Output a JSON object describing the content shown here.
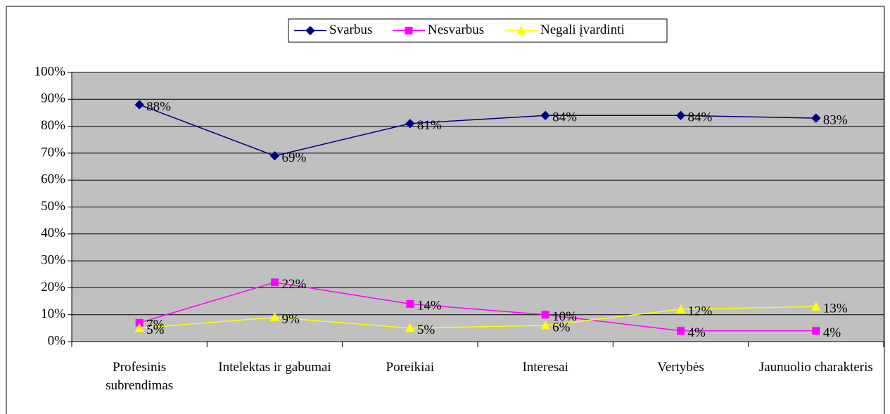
{
  "chart_data": {
    "type": "line",
    "categories": [
      "Profesinis subrendimas",
      "Intelektas ir gabumai",
      "Poreikiai",
      "Interesai",
      "Vertybės",
      "Jaunuolio charakteris"
    ],
    "series": [
      {
        "name": "Svarbus",
        "color": "#000080",
        "marker": "diamond",
        "values": [
          88,
          69,
          81,
          84,
          84,
          83
        ],
        "value_labels": [
          "88%",
          "69%",
          "81%",
          "84%",
          "84%",
          "83%"
        ]
      },
      {
        "name": "Nesvarbus",
        "color": "#ff00ff",
        "marker": "square",
        "values": [
          7,
          22,
          14,
          10,
          4,
          4
        ],
        "value_labels": [
          "7%",
          "22%",
          "14%",
          "10%",
          "4%",
          "4%"
        ]
      },
      {
        "name": "Negali įvardinti",
        "color": "#ffff00",
        "marker": "triangle",
        "values": [
          5,
          9,
          5,
          6,
          12,
          13
        ],
        "value_labels": [
          "5%",
          "9%",
          "5%",
          "6%",
          "12%",
          "13%"
        ]
      }
    ],
    "ylim": [
      0,
      100
    ],
    "yticks": [
      {
        "value": 0,
        "label": "0%"
      },
      {
        "value": 10,
        "label": "10%"
      },
      {
        "value": 20,
        "label": "20%"
      },
      {
        "value": 30,
        "label": "30%"
      },
      {
        "value": 40,
        "label": "40%"
      },
      {
        "value": 50,
        "label": "50%"
      },
      {
        "value": 60,
        "label": "60%"
      },
      {
        "value": 70,
        "label": "70%"
      },
      {
        "value": 80,
        "label": "80%"
      },
      {
        "value": 90,
        "label": "90%"
      },
      {
        "value": 100,
        "label": "100%"
      }
    ],
    "grid": true,
    "legend": "top",
    "plot_background": "#c0c0c0"
  }
}
